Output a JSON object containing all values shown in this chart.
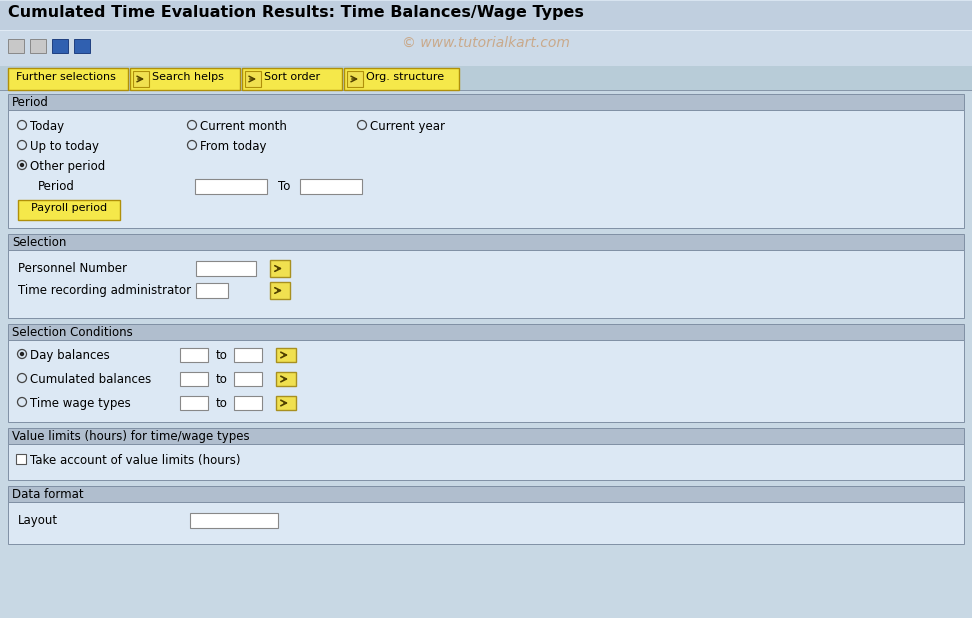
{
  "title": "Cumulated Time Evaluation Results: Time Balances/Wage Types",
  "watermark": "© www.tutorialkart.com",
  "bg_outer": "#b8ccd8",
  "bg_inner": "#dce8f0",
  "title_bar_color": "#c4d4e4",
  "toolbar_bg": "#ccdae6",
  "section_header_color": "#b0bfce",
  "input_bg": "#ffffff",
  "tab_btn_color": "#f5e84a",
  "tab_btn_border": "#b8a020",
  "arrow_btn_color": "#f0e060",
  "arrow_btn_border": "#c0a020",
  "tab_labels": [
    "Further selections",
    "Search helps",
    "Sort order",
    "Org. structure"
  ],
  "period_r1": [
    "Today",
    "Current month",
    "Current year"
  ],
  "period_r2": [
    "Up to today",
    "From today"
  ],
  "period_r3": [
    "Other period"
  ],
  "sc_rows": [
    "Day balances",
    "Cumulated balances",
    "Time wage types"
  ],
  "sc_selected": [
    true,
    false,
    false
  ],
  "vl_checkbox_label": "Take account of value limits (hours)",
  "layout_label": "Layout",
  "title_fontsize": 11.5,
  "body_fontsize": 8.5,
  "small_fontsize": 8
}
